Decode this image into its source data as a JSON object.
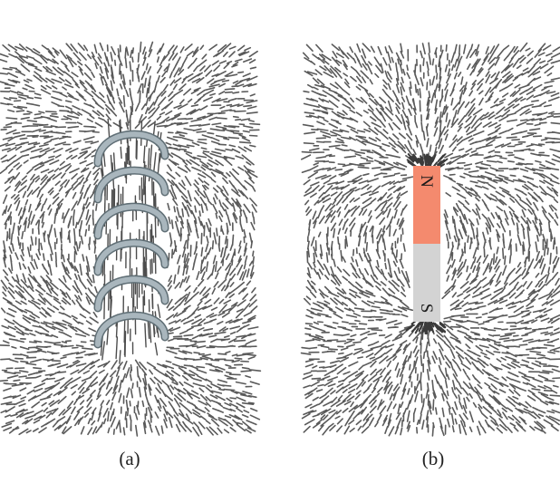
{
  "panels": [
    {
      "id": "a",
      "caption": "(a)",
      "subject": "solenoid-coil",
      "coil_turns": 6
    },
    {
      "id": "b",
      "caption": "(b)",
      "subject": "bar-magnet",
      "north_label": "N",
      "south_label": "S"
    }
  ],
  "colors": {
    "filings": "#5a5a5a",
    "coil": "#a9b6bd",
    "coil_edge": "#5f6e75",
    "north": "#f48a6e",
    "south": "#d3d3d3",
    "background": "#ffffff"
  }
}
